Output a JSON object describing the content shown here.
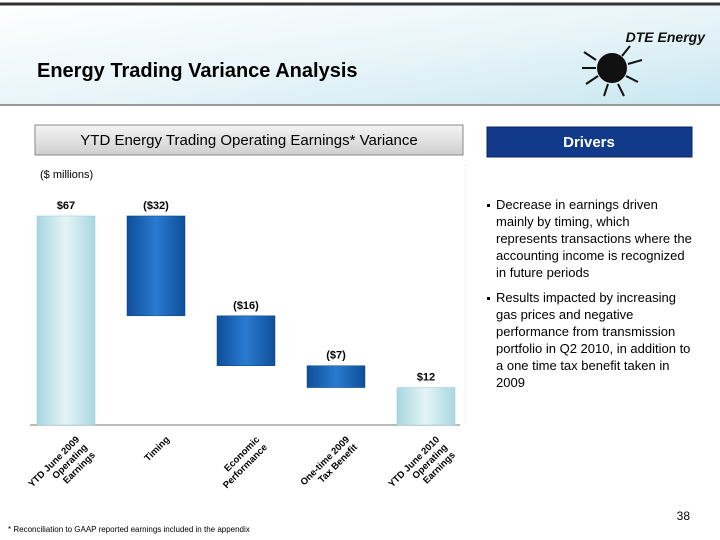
{
  "header": {
    "title": "Energy Trading Variance Analysis",
    "logo": "DTE Energy"
  },
  "chart_data": {
    "type": "waterfall",
    "title": "YTD Energy Trading Operating Earnings* Variance",
    "unit_label": "($ millions)",
    "categories": [
      "YTD June 2009\nOperating\nEarnings",
      "Timing",
      "Economic\nPerformance",
      "One-time 2009\nTax Benefit",
      "YTD June 2010\nOperating\nEarnings"
    ],
    "values": [
      67,
      -32,
      -16,
      -7,
      12
    ],
    "value_labels": [
      "$67",
      "($32)",
      "($16)",
      "($7)",
      "$12"
    ],
    "color": "#1a62b0",
    "total_color": "#c6e6ec"
  },
  "drivers": {
    "title": "Drivers",
    "bullets": [
      "Decrease in earnings driven mainly by timing, which represents transactions where the accounting income is recognized in future periods",
      "Results impacted by increasing gas prices and negative performance from transmission portfolio in Q2 2010, in addition to a one time tax benefit taken in 2009"
    ]
  },
  "footnote": "* Reconciliation to GAAP reported earnings included in the appendix",
  "page_number": "38"
}
